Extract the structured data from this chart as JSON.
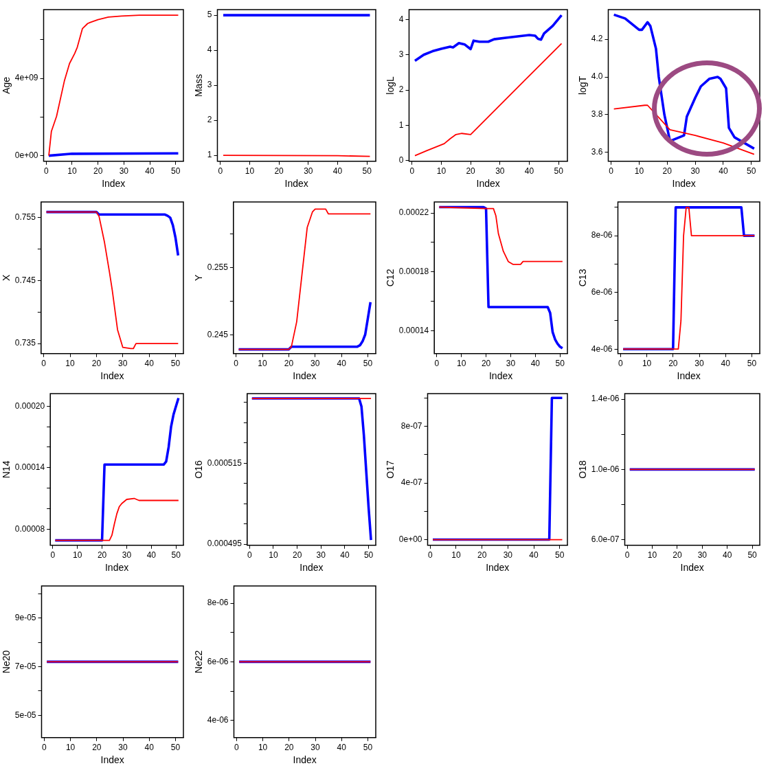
{
  "chart_data": [
    {
      "type": "line",
      "xlabel": "Index",
      "ylabel": "Age",
      "marker": "none",
      "xlim": [
        -1,
        53
      ],
      "xticks": [
        0,
        10,
        20,
        30,
        40,
        50
      ],
      "ylim": [
        -290000000,
        7560000000
      ],
      "yticks": [
        {
          "value": 0,
          "label": "0e+00"
        },
        {
          "value": 2000000000,
          "label": null
        },
        {
          "value": 4000000000,
          "label": "4e+09"
        },
        {
          "value": 6000000000,
          "label": null
        }
      ],
      "series": [
        {
          "color": "#ff0000",
          "x": [
            1,
            2,
            4,
            7,
            9,
            11,
            12,
            14,
            16,
            17,
            20,
            24,
            29,
            36,
            51
          ],
          "values": [
            0,
            1260000000,
            2040000000,
            3860000000,
            4770000000,
            5290000000,
            5610000000,
            6580000000,
            6840000000,
            6900000000,
            7040000000,
            7170000000,
            7230000000,
            7270000000,
            7270000000
          ]
        },
        {
          "color": "#0000ff",
          "x": [
            1,
            10,
            51
          ],
          "values": [
            0,
            100000000,
            120000000
          ]
        }
      ]
    },
    {
      "type": "line",
      "xlabel": "Index",
      "ylabel": "Mass",
      "marker": "none",
      "xlim": [
        -1,
        53
      ],
      "xticks": [
        0,
        10,
        20,
        30,
        40,
        50
      ],
      "ylim": [
        0.83,
        5.16
      ],
      "yticks": [
        1,
        2,
        3,
        4,
        5
      ],
      "series": [
        {
          "color": "#ff0000",
          "x": [
            1,
            40,
            51
          ],
          "values": [
            1,
            0.99,
            0.97
          ]
        },
        {
          "color": "#0000ff",
          "x": [
            1,
            51
          ],
          "values": [
            5,
            5
          ]
        }
      ]
    },
    {
      "type": "line",
      "xlabel": "Index",
      "ylabel": "logL",
      "marker": "none",
      "xlim": [
        -1,
        53
      ],
      "xticks": [
        0,
        10,
        20,
        30,
        40,
        50
      ],
      "ylim": [
        -0.02,
        4.28
      ],
      "yticks": [
        0,
        1,
        2,
        3,
        4
      ],
      "series": [
        {
          "color": "#ff0000",
          "x": [
            1,
            5,
            11,
            13,
            15,
            17,
            20,
            51
          ],
          "values": [
            0.14,
            0.28,
            0.48,
            0.62,
            0.74,
            0.77,
            0.74,
            3.32
          ]
        },
        {
          "color": "#0000ff",
          "x": [
            1,
            4,
            7,
            10,
            13,
            14,
            16,
            18,
            20,
            21,
            23,
            26,
            28,
            32,
            36,
            40,
            42,
            43,
            44,
            45,
            48,
            51
          ],
          "values": [
            2.83,
            3.0,
            3.1,
            3.17,
            3.23,
            3.21,
            3.33,
            3.29,
            3.16,
            3.4,
            3.37,
            3.37,
            3.44,
            3.48,
            3.52,
            3.56,
            3.54,
            3.45,
            3.43,
            3.6,
            3.82,
            4.12
          ]
        }
      ]
    },
    {
      "type": "line",
      "xlabel": "Index",
      "ylabel": "logT",
      "marker": "none",
      "xlim": [
        -1,
        53
      ],
      "xticks": [
        0,
        10,
        20,
        30,
        40,
        50
      ],
      "ylim": [
        3.553,
        4.357
      ],
      "yticks": [
        3.6,
        3.8,
        {
          "value": 4,
          "label": "4.0"
        },
        4.2
      ],
      "series": [
        {
          "color": "#ff0000",
          "x": [
            1,
            12,
            13,
            21,
            30,
            40,
            51
          ],
          "values": [
            3.83,
            3.85,
            3.85,
            3.72,
            3.69,
            3.65,
            3.59
          ]
        },
        {
          "color": "#0000ff",
          "x": [
            1,
            5,
            10,
            11,
            13,
            14,
            16,
            17,
            19,
            21,
            26,
            27,
            30,
            32,
            35,
            38,
            39,
            41,
            42,
            44,
            51
          ],
          "values": [
            4.33,
            4.31,
            4.25,
            4.25,
            4.29,
            4.27,
            4.15,
            4.0,
            3.8,
            3.66,
            3.69,
            3.79,
            3.89,
            3.95,
            3.99,
            4.0,
            3.99,
            3.94,
            3.73,
            3.68,
            3.62
          ]
        }
      ]
    },
    {
      "type": "line",
      "xlabel": "Index",
      "ylabel": "X",
      "marker": "none",
      "xlim": [
        -1,
        53
      ],
      "xticks": [
        0,
        10,
        20,
        30,
        40,
        50
      ],
      "ylim": [
        0.7334,
        0.7575
      ],
      "yticks": [
        0.735,
        {
          "value": 0.74,
          "label": null
        },
        0.745,
        {
          "value": 0.75,
          "label": null
        },
        0.755
      ],
      "series": [
        {
          "color": "#ff0000",
          "x": [
            1,
            20,
            21,
            23,
            25,
            26,
            28,
            30,
            33,
            34,
            35,
            51
          ],
          "values": [
            0.7559,
            0.7559,
            0.7552,
            0.7512,
            0.7462,
            0.7435,
            0.7372,
            0.7344,
            0.7342,
            0.7342,
            0.735,
            0.735
          ]
        },
        {
          "color": "#0000ff",
          "x": [
            1,
            20,
            21,
            46,
            47,
            48,
            49,
            50,
            51
          ],
          "values": [
            0.7559,
            0.7559,
            0.7555,
            0.7555,
            0.7553,
            0.755,
            0.7538,
            0.7518,
            0.749
          ]
        }
      ]
    },
    {
      "type": "line",
      "xlabel": "Index",
      "ylabel": "Y",
      "marker": "none",
      "xlim": [
        -1,
        53
      ],
      "xticks": [
        0,
        10,
        20,
        30,
        40,
        50
      ],
      "ylim": [
        0.24227,
        0.26476
      ],
      "yticks": [
        0.245,
        {
          "value": 0.25,
          "label": null
        },
        0.255,
        {
          "value": 0.26,
          "label": null
        }
      ],
      "series": [
        {
          "color": "#ff0000",
          "x": [
            1,
            20,
            21,
            23,
            25,
            27,
            29,
            30,
            34,
            35,
            51
          ],
          "values": [
            0.2429,
            0.2429,
            0.2433,
            0.247,
            0.254,
            0.261,
            0.2633,
            0.2637,
            0.2637,
            0.263,
            0.263
          ]
        },
        {
          "color": "#0000ff",
          "x": [
            1,
            20,
            21,
            46,
            47,
            48,
            49,
            50,
            51
          ],
          "values": [
            0.2429,
            0.2429,
            0.2433,
            0.2433,
            0.2435,
            0.2441,
            0.2451,
            0.2475,
            0.2499
          ]
        }
      ]
    },
    {
      "type": "line",
      "xlabel": "Index",
      "ylabel": "C12",
      "marker": "none",
      "xlim": [
        -1,
        53
      ],
      "xticks": [
        0,
        10,
        20,
        30,
        40,
        50
      ],
      "ylim": [
        0.0001243,
        0.0002275
      ],
      "yticks": [
        0.00014,
        {
          "value": 0.00016,
          "label": null
        },
        0.00018,
        {
          "value": 0.0002,
          "label": null
        },
        0.00022
      ],
      "series": [
        {
          "color": "#ff0000",
          "x": [
            1,
            20,
            23,
            24,
            25,
            27,
            29,
            31,
            34,
            35,
            51
          ],
          "values": [
            0.000224,
            0.000223,
            0.000223,
            0.000218,
            0.000206,
            0.000194,
            0.000187,
            0.000185,
            0.000185,
            0.000187,
            0.000187
          ]
        },
        {
          "color": "#0000ff",
          "x": [
            1,
            19,
            20,
            21,
            45,
            46,
            47,
            48,
            49,
            50,
            51
          ],
          "values": [
            0.000224,
            0.000224,
            0.000223,
            0.000156,
            0.000156,
            0.000152,
            0.000139,
            0.000134,
            0.000131,
            0.000129,
            0.000128
          ]
        }
      ]
    },
    {
      "type": "line",
      "xlabel": "Index",
      "ylabel": "C13",
      "marker": "none",
      "xlim": [
        -1,
        53
      ],
      "xticks": [
        0,
        10,
        20,
        30,
        40,
        50
      ],
      "ylim": [
        3.84e-06,
        9.19e-06
      ],
      "yticks": [
        {
          "value": 4e-06,
          "label": "4e-06"
        },
        {
          "value": 5e-06,
          "label": null
        },
        {
          "value": 6e-06,
          "label": "6e-06"
        },
        {
          "value": 7e-06,
          "label": null
        },
        {
          "value": 8e-06,
          "label": "8e-06"
        },
        {
          "value": 9e-06,
          "label": null
        }
      ],
      "series": [
        {
          "color": "#ff0000",
          "x": [
            1,
            22,
            23,
            24,
            25,
            26,
            27,
            51
          ],
          "values": [
            4e-06,
            4e-06,
            5e-06,
            8e-06,
            9e-06,
            9e-06,
            8e-06,
            8e-06
          ]
        },
        {
          "color": "#0000ff",
          "x": [
            1,
            20,
            21,
            46,
            47,
            51
          ],
          "values": [
            4e-06,
            4e-06,
            9e-06,
            9e-06,
            8e-06,
            8e-06
          ]
        }
      ]
    },
    {
      "type": "line",
      "xlabel": "Index",
      "ylabel": "N14",
      "marker": "none",
      "xlim": [
        -1,
        53
      ],
      "xticks": [
        0,
        10,
        20,
        30,
        40,
        50
      ],
      "ylim": [
        6.42e-05,
        0.0002123
      ],
      "yticks": [
        {
          "value": 8e-05,
          "label": "0.00008"
        },
        {
          "value": 0.0001,
          "label": null
        },
        {
          "value": 0.00012,
          "label": null
        },
        {
          "value": 0.00014,
          "label": "0.00014"
        },
        {
          "value": 0.00016,
          "label": null
        },
        {
          "value": 0.00018,
          "label": null
        },
        {
          "value": 0.0002,
          "label": "0.00020"
        }
      ],
      "series": [
        {
          "color": "#ff0000",
          "x": [
            1,
            23,
            24,
            25,
            26,
            27,
            28,
            30,
            33,
            35,
            51
          ],
          "values": [
            6.9e-05,
            6.9e-05,
            7.4e-05,
            8.5e-05,
            9.5e-05,
            0.000102,
            0.000105,
            0.000109,
            0.00011,
            0.000108,
            0.000108
          ]
        },
        {
          "color": "#0000ff",
          "x": [
            1,
            20,
            21,
            45,
            46,
            47,
            48,
            49,
            50,
            51
          ],
          "values": [
            6.9e-05,
            6.9e-05,
            0.000143,
            0.000143,
            0.000146,
            0.00016,
            0.00018,
            0.000192,
            0.0002,
            0.000208
          ]
        }
      ]
    },
    {
      "type": "line",
      "xlabel": "Index",
      "ylabel": "O16",
      "marker": "none",
      "xlim": [
        -1,
        53
      ],
      "xticks": [
        0,
        10,
        20,
        30,
        40,
        50
      ],
      "ylim": [
        0.0004947,
        0.0005322
      ],
      "yticks": [
        0.000495,
        {
          "value": 0.0005,
          "label": null
        },
        {
          "value": 0.000505,
          "label": null
        },
        {
          "value": 0.00051,
          "label": null
        },
        0.000515,
        {
          "value": 0.00052,
          "label": null
        },
        {
          "value": 0.000525,
          "label": null
        },
        {
          "value": 0.00053,
          "label": null
        }
      ],
      "series": [
        {
          "color": "#ff0000",
          "x": [
            1,
            51
          ],
          "values": [
            0.000531,
            0.000531
          ]
        },
        {
          "color": "#0000ff",
          "x": [
            1,
            46,
            47,
            48,
            49,
            50,
            51
          ],
          "values": [
            0.000531,
            0.000531,
            0.000529,
            0.000522,
            0.000513,
            0.000504,
            0.000496
          ]
        }
      ]
    },
    {
      "type": "line",
      "xlabel": "Index",
      "ylabel": "O17",
      "marker": "none",
      "xlim": [
        -1,
        53
      ],
      "xticks": [
        0,
        10,
        20,
        30,
        40,
        50
      ],
      "ylim": [
        -4e-08,
        1.03e-06
      ],
      "yticks": [
        {
          "value": 0,
          "label": "0e+00"
        },
        {
          "value": 2e-07,
          "label": null
        },
        {
          "value": 4e-07,
          "label": "4e-07"
        },
        {
          "value": 6e-07,
          "label": null
        },
        {
          "value": 8e-07,
          "label": "8e-07"
        },
        {
          "value": 1e-06,
          "label": null
        }
      ],
      "series": [
        {
          "color": "#ff0000",
          "x": [
            1,
            51
          ],
          "values": [
            0,
            0
          ]
        },
        {
          "color": "#0000ff",
          "x": [
            1,
            46,
            47,
            51
          ],
          "values": [
            0,
            0,
            1e-06,
            1e-06
          ]
        }
      ]
    },
    {
      "type": "line",
      "xlabel": "Index",
      "ylabel": "O18",
      "marker": "none",
      "xlim": [
        -1,
        53
      ],
      "xticks": [
        0,
        10,
        20,
        30,
        40,
        50
      ],
      "ylim": [
        5.68e-07,
        1.432e-06
      ],
      "yticks": [
        {
          "value": 6e-07,
          "label": "6.0e-07"
        },
        {
          "value": 8e-07,
          "label": null
        },
        {
          "value": 1e-06,
          "label": "1.0e-06"
        },
        {
          "value": 1.2e-06,
          "label": null
        },
        {
          "value": 1.4e-06,
          "label": "1.4e-06"
        }
      ],
      "series": [
        {
          "color": "#ff0000",
          "x": [
            1,
            51
          ],
          "values": [
            1e-06,
            1e-06
          ]
        },
        {
          "color": "#0000ff",
          "x": [
            1,
            51
          ],
          "values": [
            1e-06,
            1e-06
          ]
        }
      ]
    },
    {
      "type": "line",
      "xlabel": "Index",
      "ylabel": "Ne20",
      "marker": "none",
      "xlim": [
        -1,
        53
      ],
      "xticks": [
        0,
        10,
        20,
        30,
        40,
        50
      ],
      "ylim": [
        4.09e-05,
        0.0001031
      ],
      "yticks": [
        {
          "value": 5e-05,
          "label": "5e-05"
        },
        {
          "value": 6e-05,
          "label": null
        },
        {
          "value": 7e-05,
          "label": "7e-05"
        },
        {
          "value": 8e-05,
          "label": null
        },
        {
          "value": 9e-05,
          "label": "9e-05"
        },
        {
          "value": 0.0001,
          "label": null
        }
      ],
      "series": [
        {
          "color": "#ff0000",
          "x": [
            1,
            51
          ],
          "values": [
            7.2e-05,
            7.2e-05
          ]
        },
        {
          "color": "#0000ff",
          "x": [
            1,
            51
          ],
          "values": [
            7.2e-05,
            7.2e-05
          ]
        }
      ]
    },
    {
      "type": "line",
      "xlabel": "Index",
      "ylabel": "Ne22",
      "marker": "none",
      "xlim": [
        -1,
        53
      ],
      "xticks": [
        0,
        10,
        20,
        30,
        40,
        50
      ],
      "ylim": [
        3.41e-06,
        8.59e-06
      ],
      "yticks": [
        {
          "value": 4e-06,
          "label": "4e-06"
        },
        {
          "value": 5e-06,
          "label": null
        },
        {
          "value": 6e-06,
          "label": "6e-06"
        },
        {
          "value": 7e-06,
          "label": null
        },
        {
          "value": 8e-06,
          "label": "8e-06"
        }
      ],
      "series": [
        {
          "color": "#ff0000",
          "x": [
            1,
            51
          ],
          "values": [
            6e-06,
            6e-06
          ]
        },
        {
          "color": "#0000ff",
          "x": [
            1,
            51
          ],
          "values": [
            6e-06,
            6e-06
          ]
        }
      ]
    }
  ]
}
